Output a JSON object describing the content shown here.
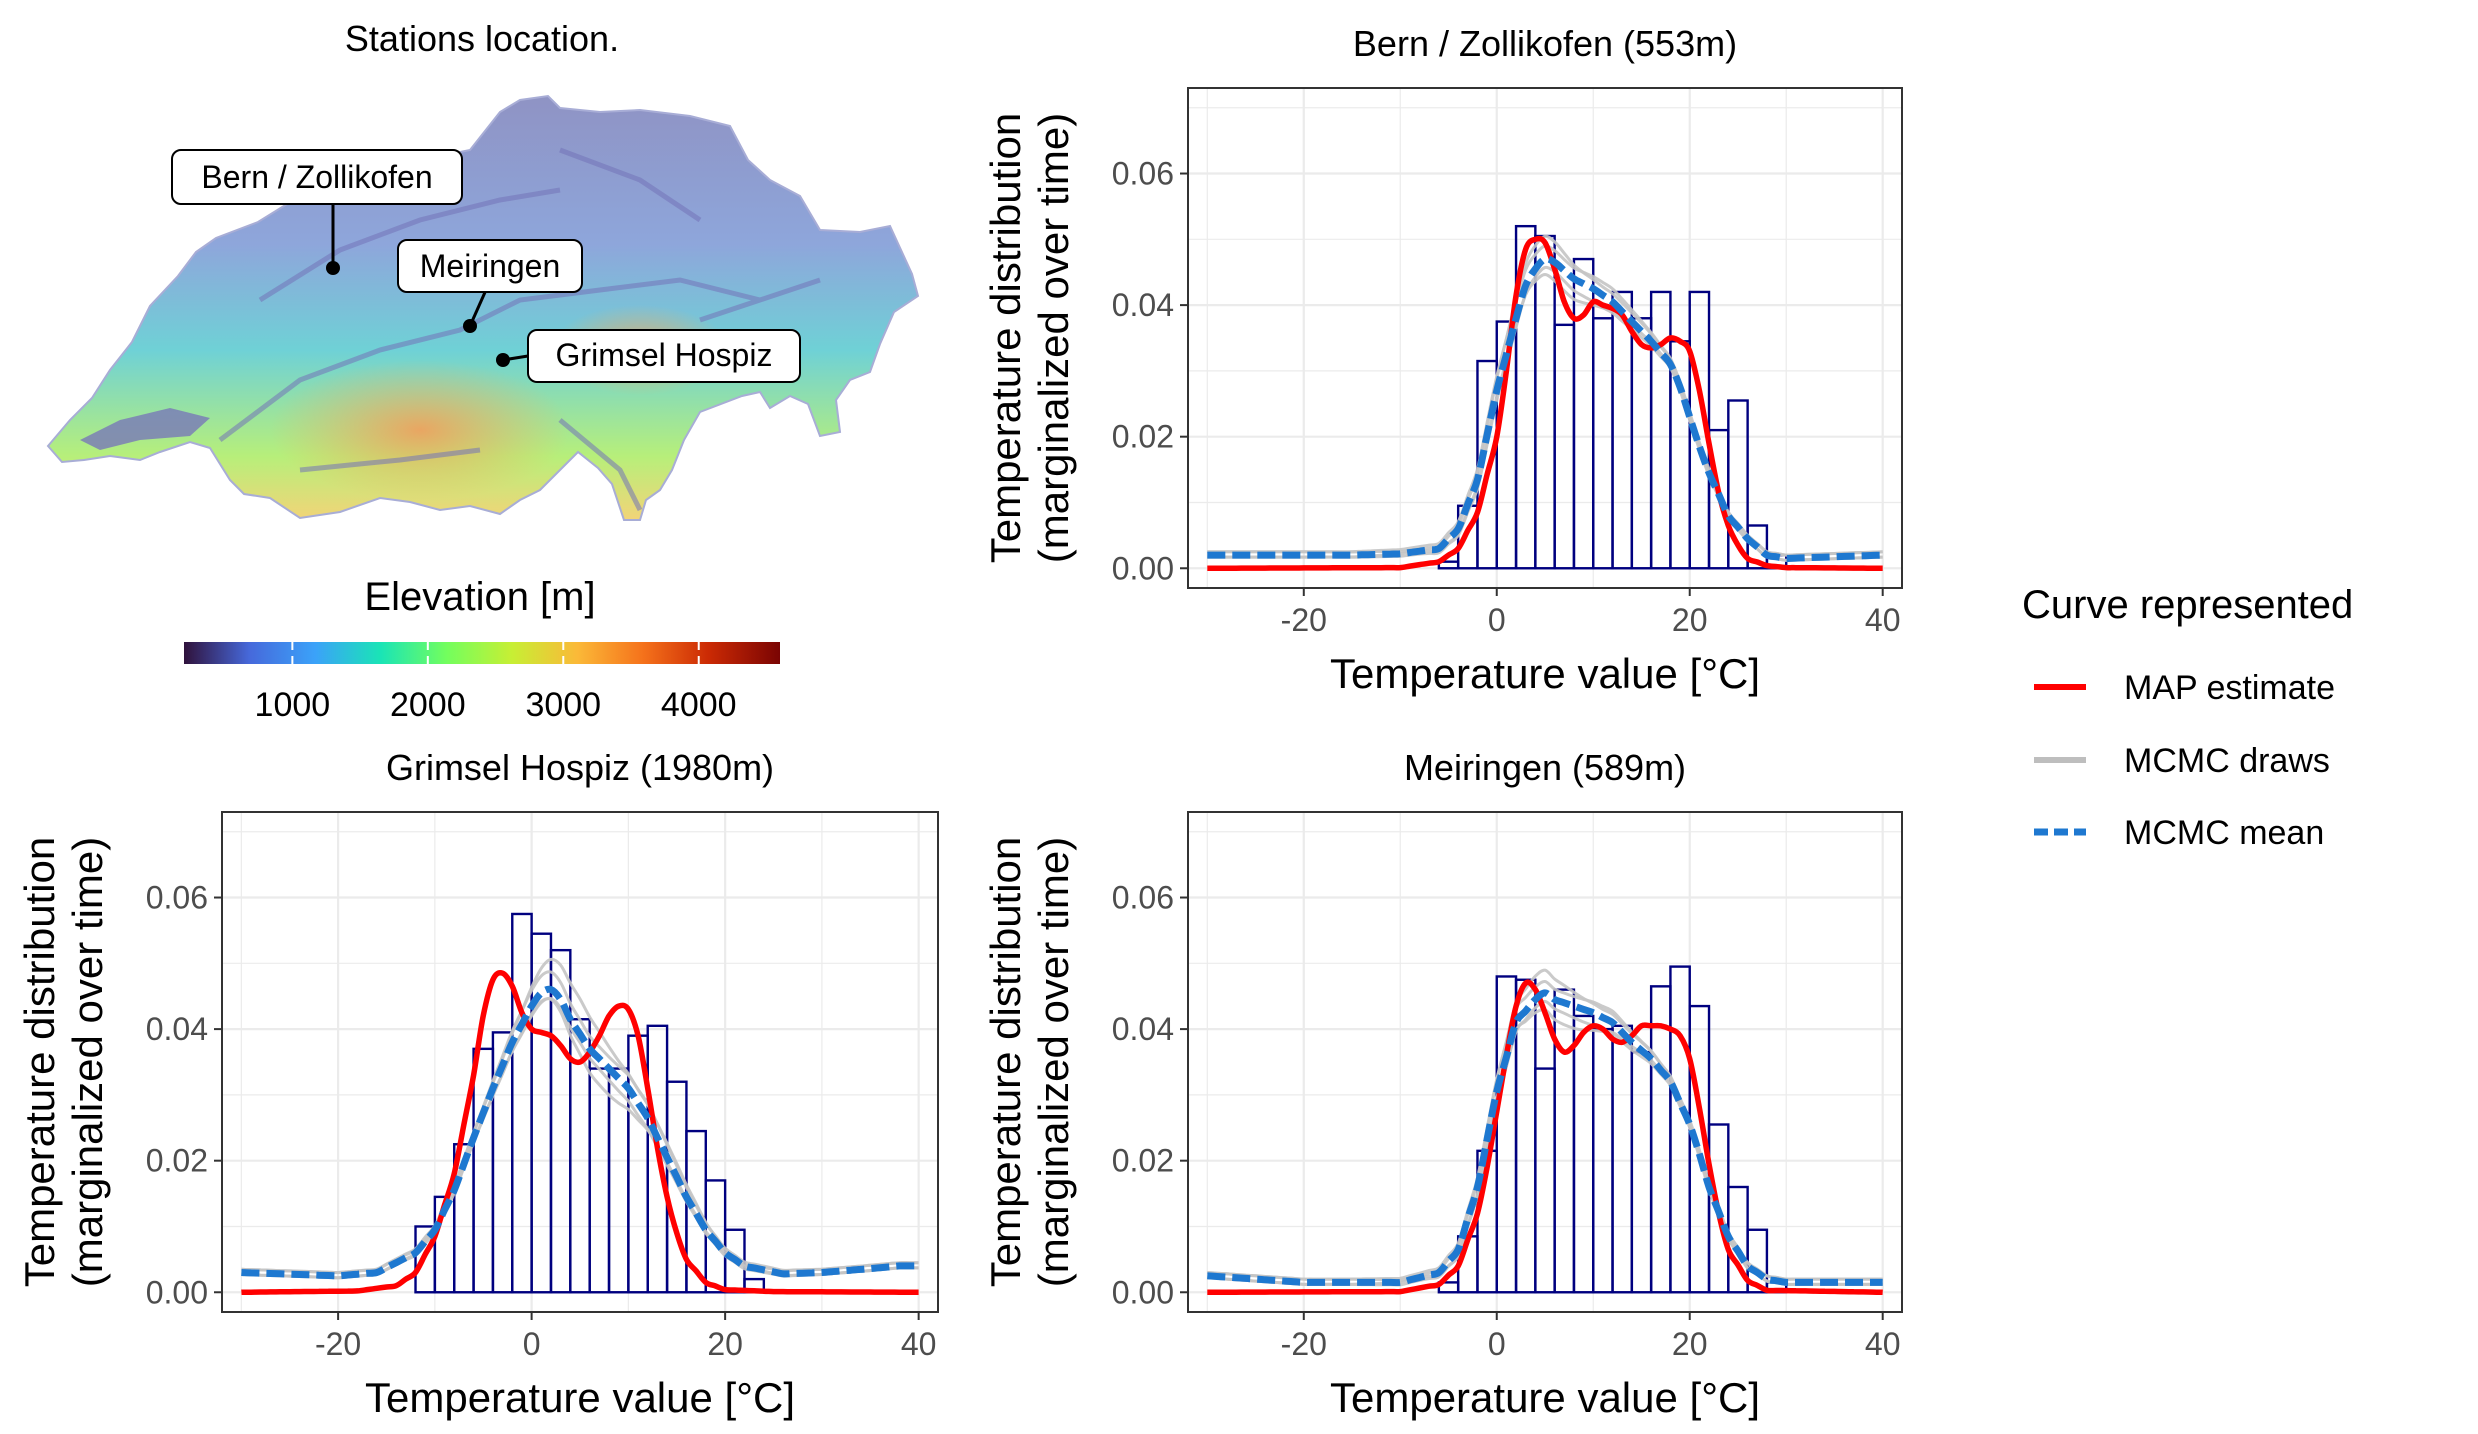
{
  "map_panel": {
    "title": "Stations location.",
    "stations": [
      {
        "label": "Bern / Zollikofen"
      },
      {
        "label": "Meiringen"
      },
      {
        "label": "Grimsel Hospiz"
      }
    ],
    "colorbar": {
      "title": "Elevation [m]",
      "ticks": [
        "1000",
        "2000",
        "3000",
        "4000"
      ],
      "tick_values": [
        1000,
        2000,
        3000,
        4000
      ],
      "range": [
        200,
        4600
      ],
      "palette": [
        "#30123b",
        "#4669db",
        "#3ba2f9",
        "#1ae4b6",
        "#72fe5e",
        "#c7ef34",
        "#fbb938",
        "#f5721b",
        "#cb2a04",
        "#7a0403"
      ]
    }
  },
  "legend": {
    "title": "Curve represented",
    "items": [
      {
        "label": "MAP estimate",
        "color": "#ff0000",
        "style": "solid"
      },
      {
        "label": "MCMC draws",
        "color": "#bebebe",
        "style": "solid"
      },
      {
        "label": "MCMC mean",
        "color": "#1e78d0",
        "style": "dashed"
      }
    ]
  },
  "colors": {
    "map": "#ff0000",
    "draws": "#c4c4c4",
    "mean": "#1e78d0",
    "hist_stroke": "#00007f",
    "grid": "#ebebeb"
  },
  "chart_data": [
    {
      "type": "histogram+line",
      "title": "Bern / Zollikofen (553m)",
      "xlabel": "Temperature value [°C]",
      "ylabel_line1": "Temperature distribution",
      "ylabel_line2": "(marginalized over time)",
      "xlim": [
        -32,
        42
      ],
      "ylim": [
        -0.003,
        0.073
      ],
      "xticks": [
        -20,
        0,
        20,
        40
      ],
      "yticks": [
        0.0,
        0.02,
        0.04,
        0.06
      ],
      "xtick_labels": [
        "-20",
        "0",
        "20",
        "40"
      ],
      "ytick_labels": [
        "0.00",
        "0.02",
        "0.04",
        "0.06"
      ],
      "grid": true,
      "histogram": {
        "bin_start": -8,
        "bin_width": 2,
        "values": [
          0.0,
          0.001,
          0.0095,
          0.0315,
          0.0375,
          0.052,
          0.0505,
          0.037,
          0.047,
          0.038,
          0.042,
          0.038,
          0.042,
          0.0345,
          0.042,
          0.021,
          0.0255,
          0.0065,
          0.002
        ]
      },
      "map_curve": {
        "x": [
          -30,
          -10,
          -6,
          -4,
          -2,
          0,
          1,
          2,
          3,
          4,
          5,
          6,
          7,
          8,
          9,
          10,
          11,
          12,
          13,
          14,
          15,
          16,
          17,
          18,
          19,
          20,
          21,
          22,
          23,
          24,
          25,
          26,
          28,
          30,
          40
        ],
        "y": [
          0.0,
          0.0001,
          0.001,
          0.003,
          0.0085,
          0.02,
          0.03,
          0.0415,
          0.0485,
          0.05,
          0.0495,
          0.0455,
          0.0405,
          0.038,
          0.0385,
          0.0405,
          0.04,
          0.0395,
          0.0385,
          0.036,
          0.034,
          0.0335,
          0.034,
          0.035,
          0.0345,
          0.033,
          0.027,
          0.019,
          0.0115,
          0.0065,
          0.0035,
          0.0015,
          0.0004,
          0.0001,
          0.0
        ]
      },
      "mean_curve": {
        "x": [
          -30,
          -15,
          -10,
          -6,
          -4,
          -2,
          0,
          2,
          3,
          4,
          5,
          6,
          8,
          10,
          12,
          14,
          16,
          18,
          19,
          20,
          21,
          22,
          24,
          26,
          28,
          30,
          40
        ],
        "y": [
          0.002,
          0.002,
          0.0022,
          0.003,
          0.006,
          0.0135,
          0.027,
          0.038,
          0.043,
          0.0455,
          0.047,
          0.0465,
          0.044,
          0.0425,
          0.0405,
          0.0375,
          0.0345,
          0.031,
          0.0275,
          0.023,
          0.0185,
          0.0145,
          0.008,
          0.0045,
          0.002,
          0.0015,
          0.002
        ]
      },
      "draw_offsets": [
        0.003,
        0.0018,
        -0.0015,
        -0.0028
      ]
    },
    {
      "type": "histogram+line",
      "title": "Grimsel Hospiz (1980m)",
      "xlabel": "Temperature value [°C]",
      "ylabel_line1": "Temperature distribution",
      "ylabel_line2": "(marginalized over time)",
      "xlim": [
        -32,
        42
      ],
      "ylim": [
        -0.003,
        0.073
      ],
      "xticks": [
        -20,
        0,
        20,
        40
      ],
      "yticks": [
        0.0,
        0.02,
        0.04,
        0.06
      ],
      "xtick_labels": [
        "-20",
        "0",
        "20",
        "40"
      ],
      "ytick_labels": [
        "0.00",
        "0.02",
        "0.04",
        "0.06"
      ],
      "grid": true,
      "histogram": {
        "bin_start": -14,
        "bin_width": 2,
        "values": [
          0.0,
          0.01,
          0.0145,
          0.0225,
          0.037,
          0.0395,
          0.0575,
          0.0545,
          0.052,
          0.0415,
          0.034,
          0.034,
          0.039,
          0.0405,
          0.032,
          0.0245,
          0.017,
          0.0095,
          0.002
        ]
      },
      "map_curve": {
        "x": [
          -30,
          -18,
          -14,
          -12,
          -10,
          -8,
          -6,
          -5,
          -4,
          -3,
          -2,
          -1,
          0,
          1,
          2,
          3,
          4,
          5,
          6,
          7,
          8,
          9,
          10,
          11,
          12,
          13,
          14,
          15,
          16,
          18,
          20,
          25,
          40
        ],
        "y": [
          0.0,
          0.0002,
          0.001,
          0.003,
          0.0085,
          0.018,
          0.033,
          0.042,
          0.0475,
          0.0485,
          0.0465,
          0.0425,
          0.04,
          0.0395,
          0.039,
          0.0375,
          0.0355,
          0.035,
          0.0365,
          0.039,
          0.042,
          0.0435,
          0.043,
          0.039,
          0.031,
          0.022,
          0.0145,
          0.009,
          0.005,
          0.0015,
          0.0004,
          0.0001,
          0.0
        ]
      },
      "mean_curve": {
        "x": [
          -30,
          -20,
          -16,
          -12,
          -10,
          -8,
          -6,
          -4,
          -2,
          0,
          1,
          2,
          3,
          4,
          6,
          8,
          10,
          12,
          14,
          16,
          18,
          20,
          22,
          26,
          30,
          35,
          38,
          40
        ],
        "y": [
          0.003,
          0.0025,
          0.003,
          0.006,
          0.0095,
          0.0155,
          0.0235,
          0.031,
          0.038,
          0.0435,
          0.0455,
          0.046,
          0.0445,
          0.0415,
          0.037,
          0.034,
          0.031,
          0.0265,
          0.0205,
          0.0145,
          0.0095,
          0.006,
          0.004,
          0.0028,
          0.003,
          0.0036,
          0.004,
          0.004
        ]
      },
      "draw_offsets": [
        0.0045,
        0.002,
        -0.0015,
        -0.0035
      ]
    },
    {
      "type": "histogram+line",
      "title": "Meiringen (589m)",
      "xlabel": "Temperature value [°C]",
      "ylabel_line1": "Temperature distribution",
      "ylabel_line2": "(marginalized over time)",
      "xlim": [
        -32,
        42
      ],
      "ylim": [
        -0.003,
        0.073
      ],
      "xticks": [
        -20,
        0,
        20,
        40
      ],
      "yticks": [
        0.0,
        0.02,
        0.04,
        0.06
      ],
      "xtick_labels": [
        "-20",
        "0",
        "20",
        "40"
      ],
      "ytick_labels": [
        "0.00",
        "0.02",
        "0.04",
        "0.06"
      ],
      "grid": true,
      "histogram": {
        "bin_start": -8,
        "bin_width": 2,
        "values": [
          0.0,
          0.0015,
          0.0085,
          0.0215,
          0.048,
          0.0475,
          0.034,
          0.046,
          0.042,
          0.04,
          0.0405,
          0.0365,
          0.0465,
          0.0495,
          0.0435,
          0.0255,
          0.016,
          0.0095,
          0.0015
        ]
      },
      "map_curve": {
        "x": [
          -30,
          -10,
          -6,
          -4,
          -2,
          -1,
          0,
          1,
          2,
          3,
          4,
          5,
          6,
          7,
          8,
          9,
          10,
          11,
          12,
          13,
          14,
          15,
          16,
          17,
          18,
          19,
          20,
          21,
          22,
          23,
          24,
          26,
          28,
          40
        ],
        "y": [
          0.0,
          0.0001,
          0.0012,
          0.004,
          0.012,
          0.019,
          0.0275,
          0.036,
          0.0435,
          0.047,
          0.046,
          0.0425,
          0.0385,
          0.0365,
          0.0375,
          0.0395,
          0.0405,
          0.04,
          0.0385,
          0.038,
          0.039,
          0.0405,
          0.0405,
          0.0405,
          0.04,
          0.039,
          0.0355,
          0.028,
          0.0195,
          0.012,
          0.0065,
          0.0018,
          0.0003,
          0.0
        ]
      },
      "mean_curve": {
        "x": [
          -30,
          -20,
          -10,
          -6,
          -4,
          -2,
          0,
          2,
          4,
          5,
          6,
          8,
          10,
          12,
          14,
          16,
          18,
          20,
          21,
          22,
          24,
          26,
          28,
          30,
          40
        ],
        "y": [
          0.0025,
          0.0015,
          0.0015,
          0.003,
          0.0065,
          0.016,
          0.0305,
          0.041,
          0.0445,
          0.0455,
          0.0445,
          0.0435,
          0.0425,
          0.041,
          0.038,
          0.0355,
          0.032,
          0.0255,
          0.021,
          0.016,
          0.0085,
          0.004,
          0.002,
          0.0015,
          0.0015
        ]
      },
      "draw_offsets": [
        0.003,
        0.0015,
        -0.0015,
        -0.003
      ]
    }
  ]
}
